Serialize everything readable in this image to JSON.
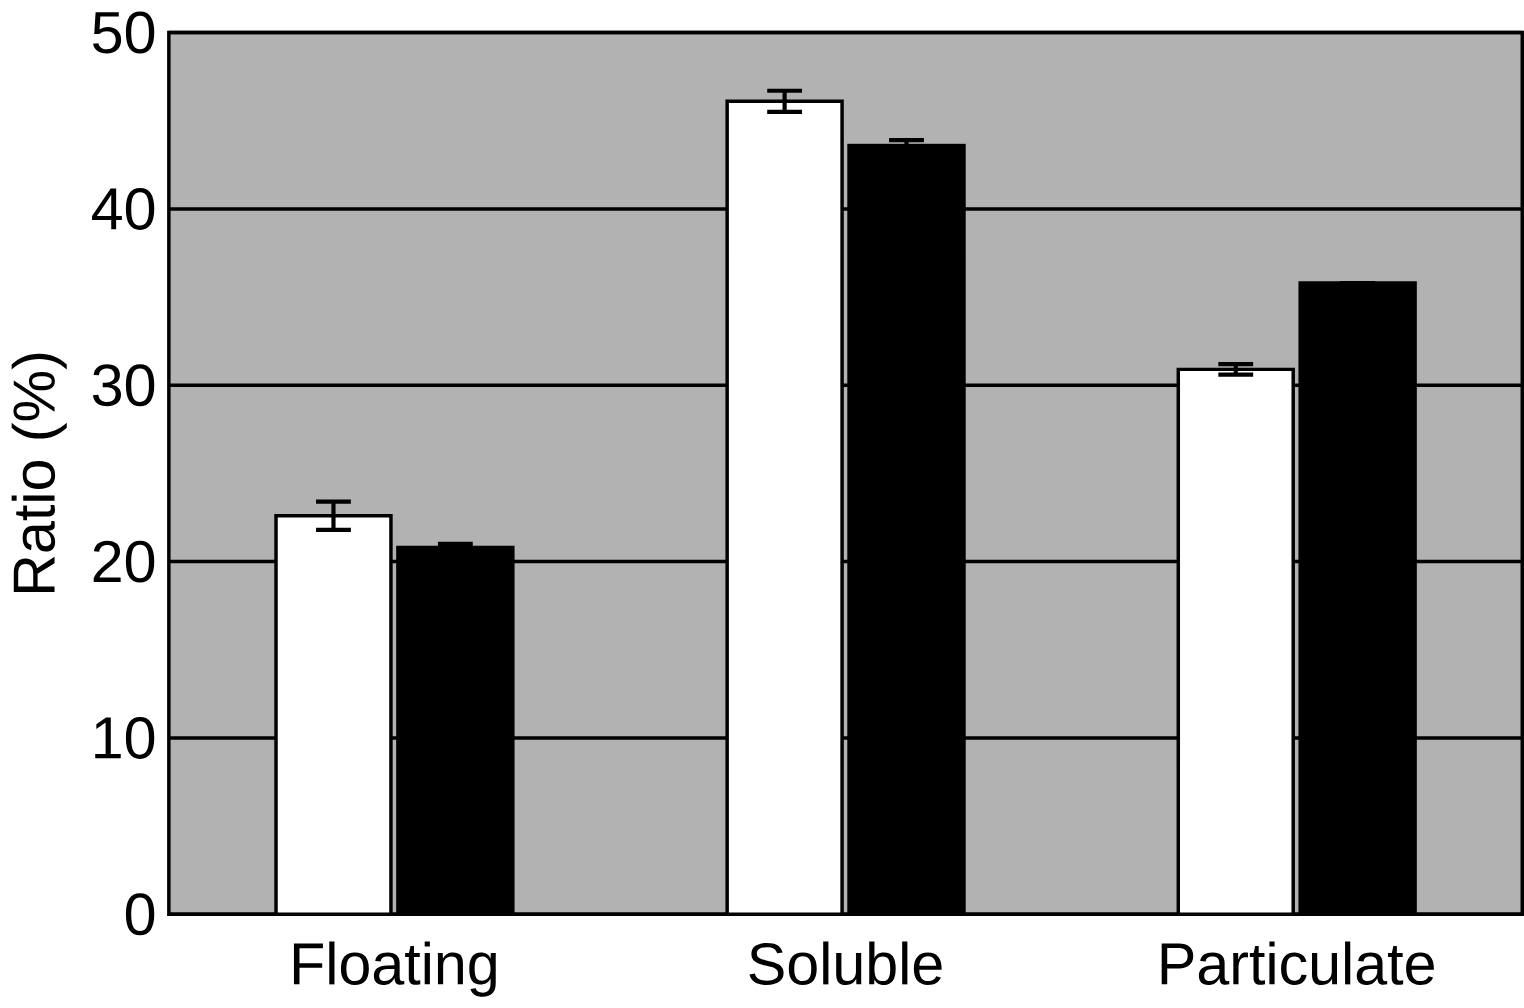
{
  "chart_data": {
    "type": "bar",
    "ylabel": "Ratio (%)",
    "categories": [
      "Floating",
      "Soluble",
      "Particulate"
    ],
    "series": [
      {
        "color": "#ffffff",
        "values": [
          22.6,
          46.1,
          30.9
        ],
        "errors": [
          0.8,
          0.6,
          0.3
        ]
      },
      {
        "color": "#000000",
        "values": [
          20.8,
          43.6,
          35.8
        ],
        "errors": [
          0.2,
          0.3,
          null
        ]
      }
    ],
    "ylim": [
      0,
      50
    ],
    "yticks": [
      0,
      10,
      20,
      30,
      40,
      50
    ],
    "grid": "y"
  }
}
